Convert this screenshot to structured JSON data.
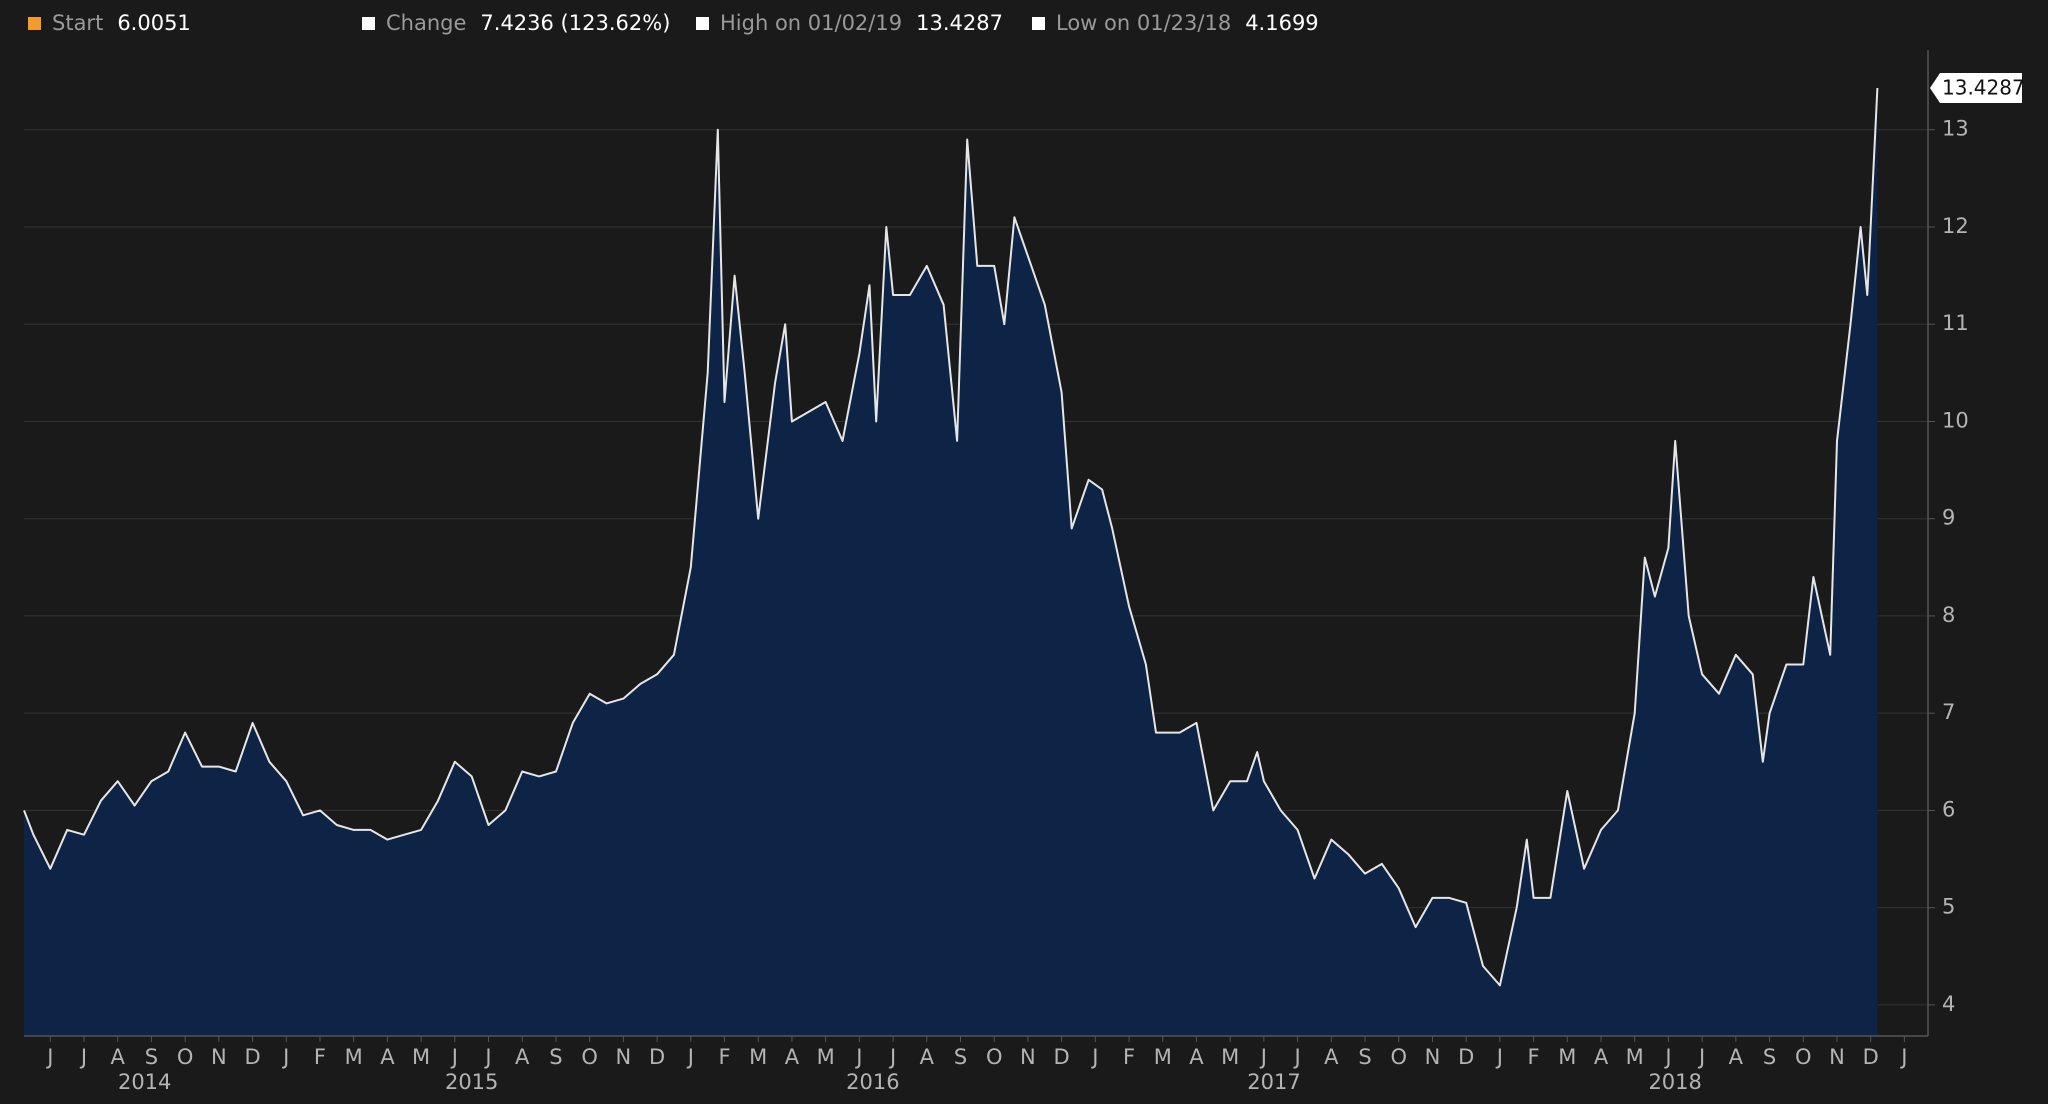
{
  "chart_data": {
    "type": "area",
    "stats": [
      {
        "label": "Start",
        "value": "6.0051",
        "color": "#f39c2c"
      },
      {
        "label": "Change",
        "value": "7.4236 (123.62%)",
        "color": "#ffffff"
      },
      {
        "label": "High on 01/02/19",
        "value": "13.4287",
        "color": "#ffffff"
      },
      {
        "label": "Low on 01/23/18",
        "value": "4.1699",
        "color": "#ffffff"
      }
    ],
    "last_value_label": "13.4287",
    "x": [
      -0.78,
      -0.5,
      0,
      0.5,
      1,
      1.5,
      2,
      2.5,
      3,
      3.5,
      4,
      4.5,
      5,
      5.5,
      6,
      6.5,
      7,
      7.5,
      8,
      8.5,
      9,
      9.5,
      10,
      10.5,
      11,
      11.5,
      12,
      12.5,
      13,
      13.5,
      14,
      14.5,
      15,
      15.5,
      16,
      16.5,
      17,
      17.5,
      18,
      18.5,
      19,
      19.5,
      19.8,
      20,
      20.3,
      20.6,
      21,
      21.5,
      21.8,
      22,
      22.5,
      23,
      23.5,
      24,
      24.3,
      24.5,
      24.8,
      25,
      25.5,
      26,
      26.5,
      26.9,
      27.2,
      27.5,
      28,
      28.3,
      28.6,
      29,
      29.5,
      30,
      30.3,
      30.8,
      31.2,
      31.5,
      32,
      32.5,
      32.8,
      33.5,
      34,
      34.5,
      35,
      35.5,
      35.8,
      36,
      36.5,
      37,
      37.5,
      38,
      38.5,
      39,
      39.5,
      40,
      40.5,
      41,
      41.5,
      42,
      42.5,
      43,
      43.5,
      43.8,
      44,
      44.5,
      45,
      45.5,
      46,
      46.5,
      47,
      47.3,
      47.6,
      48,
      48.2,
      48.6,
      49,
      49.5,
      50,
      50.5,
      50.8,
      51,
      51.5,
      52,
      52.3,
      52.8,
      53,
      53.4,
      53.7,
      53.9,
      54.2
    ],
    "series": [
      {
        "color": "#e6e6e6",
        "fill": "#0e2446",
        "values": [
          6.0,
          5.75,
          5.4,
          5.8,
          5.75,
          6.1,
          6.3,
          6.05,
          6.3,
          6.4,
          6.8,
          6.45,
          6.45,
          6.4,
          6.9,
          6.5,
          6.3,
          5.95,
          6.0,
          5.85,
          5.8,
          5.8,
          5.7,
          5.75,
          5.8,
          6.1,
          6.5,
          6.35,
          5.85,
          6.0,
          6.4,
          6.35,
          6.4,
          6.9,
          7.2,
          7.1,
          7.15,
          7.3,
          7.4,
          7.6,
          8.5,
          10.5,
          13.0,
          10.2,
          11.5,
          10.5,
          9.0,
          10.4,
          11.0,
          10.0,
          10.1,
          10.2,
          9.8,
          10.7,
          11.4,
          10.0,
          12.0,
          11.3,
          11.3,
          11.6,
          11.2,
          9.8,
          12.9,
          11.6,
          11.6,
          11.0,
          12.1,
          11.7,
          11.2,
          10.3,
          8.9,
          9.4,
          9.3,
          8.9,
          8.1,
          7.5,
          6.8,
          6.8,
          6.9,
          6.0,
          6.3,
          6.3,
          6.6,
          6.3,
          6.0,
          5.8,
          5.3,
          5.7,
          5.55,
          5.35,
          5.45,
          5.2,
          4.8,
          5.1,
          5.1,
          5.05,
          4.4,
          4.2,
          5.0,
          5.7,
          5.1,
          5.1,
          6.2,
          5.4,
          5.8,
          6.0,
          7.0,
          8.6,
          8.2,
          8.7,
          9.8,
          8.0,
          7.4,
          7.2,
          7.6,
          7.4,
          6.5,
          7.0,
          7.5,
          7.5,
          8.4,
          7.6,
          9.8,
          11.0,
          12.0,
          11.3,
          13.4287
        ]
      }
    ],
    "xlim": [
      -0.78,
      55.7
    ],
    "ylim": [
      3.68,
      13.82
    ],
    "yticks": [
      4,
      5,
      6,
      7,
      8,
      9,
      10,
      11,
      12,
      13
    ],
    "grid": true,
    "xticks": [
      {
        "value": 0,
        "label": "J"
      },
      {
        "value": 1,
        "label": "J"
      },
      {
        "value": 2,
        "label": "A"
      },
      {
        "value": 3,
        "label": "S"
      },
      {
        "value": 4,
        "label": "O"
      },
      {
        "value": 5,
        "label": "N"
      },
      {
        "value": 6,
        "label": "D"
      },
      {
        "value": 7,
        "label": "J"
      },
      {
        "value": 8,
        "label": "F"
      },
      {
        "value": 9,
        "label": "M"
      },
      {
        "value": 10,
        "label": "A"
      },
      {
        "value": 11,
        "label": "M"
      },
      {
        "value": 12,
        "label": "J"
      },
      {
        "value": 13,
        "label": "J"
      },
      {
        "value": 14,
        "label": "A"
      },
      {
        "value": 15,
        "label": "S"
      },
      {
        "value": 16,
        "label": "O"
      },
      {
        "value": 17,
        "label": "N"
      },
      {
        "value": 18,
        "label": "D"
      },
      {
        "value": 19,
        "label": "J"
      },
      {
        "value": 20,
        "label": "F"
      },
      {
        "value": 21,
        "label": "M"
      },
      {
        "value": 22,
        "label": "A"
      },
      {
        "value": 23,
        "label": "M"
      },
      {
        "value": 24,
        "label": "J"
      },
      {
        "value": 25,
        "label": "J"
      },
      {
        "value": 26,
        "label": "A"
      },
      {
        "value": 27,
        "label": "S"
      },
      {
        "value": 28,
        "label": "O"
      },
      {
        "value": 29,
        "label": "N"
      },
      {
        "value": 30,
        "label": "D"
      },
      {
        "value": 31,
        "label": "J"
      },
      {
        "value": 32,
        "label": "F"
      },
      {
        "value": 33,
        "label": "M"
      },
      {
        "value": 34,
        "label": "A"
      },
      {
        "value": 35,
        "label": "M"
      },
      {
        "value": 36,
        "label": "J"
      },
      {
        "value": 37,
        "label": "J"
      },
      {
        "value": 38,
        "label": "A"
      },
      {
        "value": 39,
        "label": "S"
      },
      {
        "value": 40,
        "label": "O"
      },
      {
        "value": 41,
        "label": "N"
      },
      {
        "value": 42,
        "label": "D"
      },
      {
        "value": 43,
        "label": "J"
      },
      {
        "value": 44,
        "label": "F"
      },
      {
        "value": 45,
        "label": "M"
      },
      {
        "value": 46,
        "label": "A"
      },
      {
        "value": 47,
        "label": "M"
      },
      {
        "value": 48,
        "label": "J"
      },
      {
        "value": 49,
        "label": "J"
      },
      {
        "value": 50,
        "label": "A"
      },
      {
        "value": 51,
        "label": "S"
      },
      {
        "value": 52,
        "label": "O"
      },
      {
        "value": 53,
        "label": "N"
      },
      {
        "value": 54,
        "label": "D"
      },
      {
        "value": 55,
        "label": "J"
      }
    ],
    "year_labels": [
      {
        "value": 2.8,
        "label": "2014"
      },
      {
        "value": 12.5,
        "label": "2015"
      },
      {
        "value": 24.4,
        "label": "2016"
      },
      {
        "value": 36.3,
        "label": "2017"
      },
      {
        "value": 48.2,
        "label": "2018"
      }
    ]
  }
}
